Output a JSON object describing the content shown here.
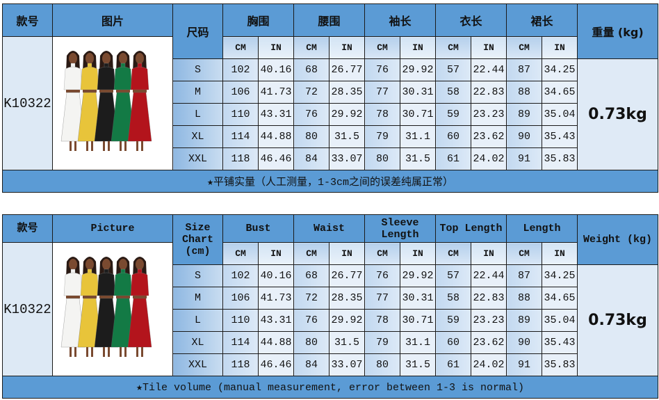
{
  "style_code": "K10322",
  "weight": "0.73kg",
  "unit_labels": [
    "CM",
    "IN"
  ],
  "sizes": [
    {
      "size": "S",
      "values": [
        "102",
        "40.16",
        "68",
        "26.77",
        "76",
        "29.92",
        "57",
        "22.44",
        "87",
        "34.25"
      ]
    },
    {
      "size": "M",
      "values": [
        "106",
        "41.73",
        "72",
        "28.35",
        "77",
        "30.31",
        "58",
        "22.83",
        "88",
        "34.65"
      ]
    },
    {
      "size": "L",
      "values": [
        "110",
        "43.31",
        "76",
        "29.92",
        "78",
        "30.71",
        "59",
        "23.23",
        "89",
        "35.04"
      ]
    },
    {
      "size": "XL",
      "values": [
        "114",
        "44.88",
        "80",
        "31.5",
        "79",
        "31.1",
        "60",
        "23.62",
        "90",
        "35.43"
      ]
    },
    {
      "size": "XXL",
      "values": [
        "118",
        "46.46",
        "84",
        "33.07",
        "80",
        "31.5",
        "61",
        "24.02",
        "91",
        "35.83"
      ]
    }
  ],
  "tables": [
    {
      "code_header": "款号",
      "picture_header": "图片",
      "size_header": "尺码",
      "measures": [
        "胸围",
        "腰围",
        "袖长",
        "衣长",
        "裙长"
      ],
      "weight_header": "重量 (kg)",
      "footnote": "★平铺实量（人工测量，1-3cm之间的误差纯属正常）"
    },
    {
      "code_header": "款号",
      "picture_header": "Picture",
      "size_header": "Size Chart (cm)",
      "measures": [
        "Bust",
        "Waist",
        "Sleeve Length",
        "Top Length",
        "Length"
      ],
      "weight_header": "Weight (kg)",
      "footnote": "★Tile volume (manual measurement, error between 1-3 is normal)"
    }
  ],
  "dress_colors": [
    "#f4f4f2",
    "#e8c43a",
    "#1c1c1c",
    "#137a45",
    "#b3141c"
  ]
}
